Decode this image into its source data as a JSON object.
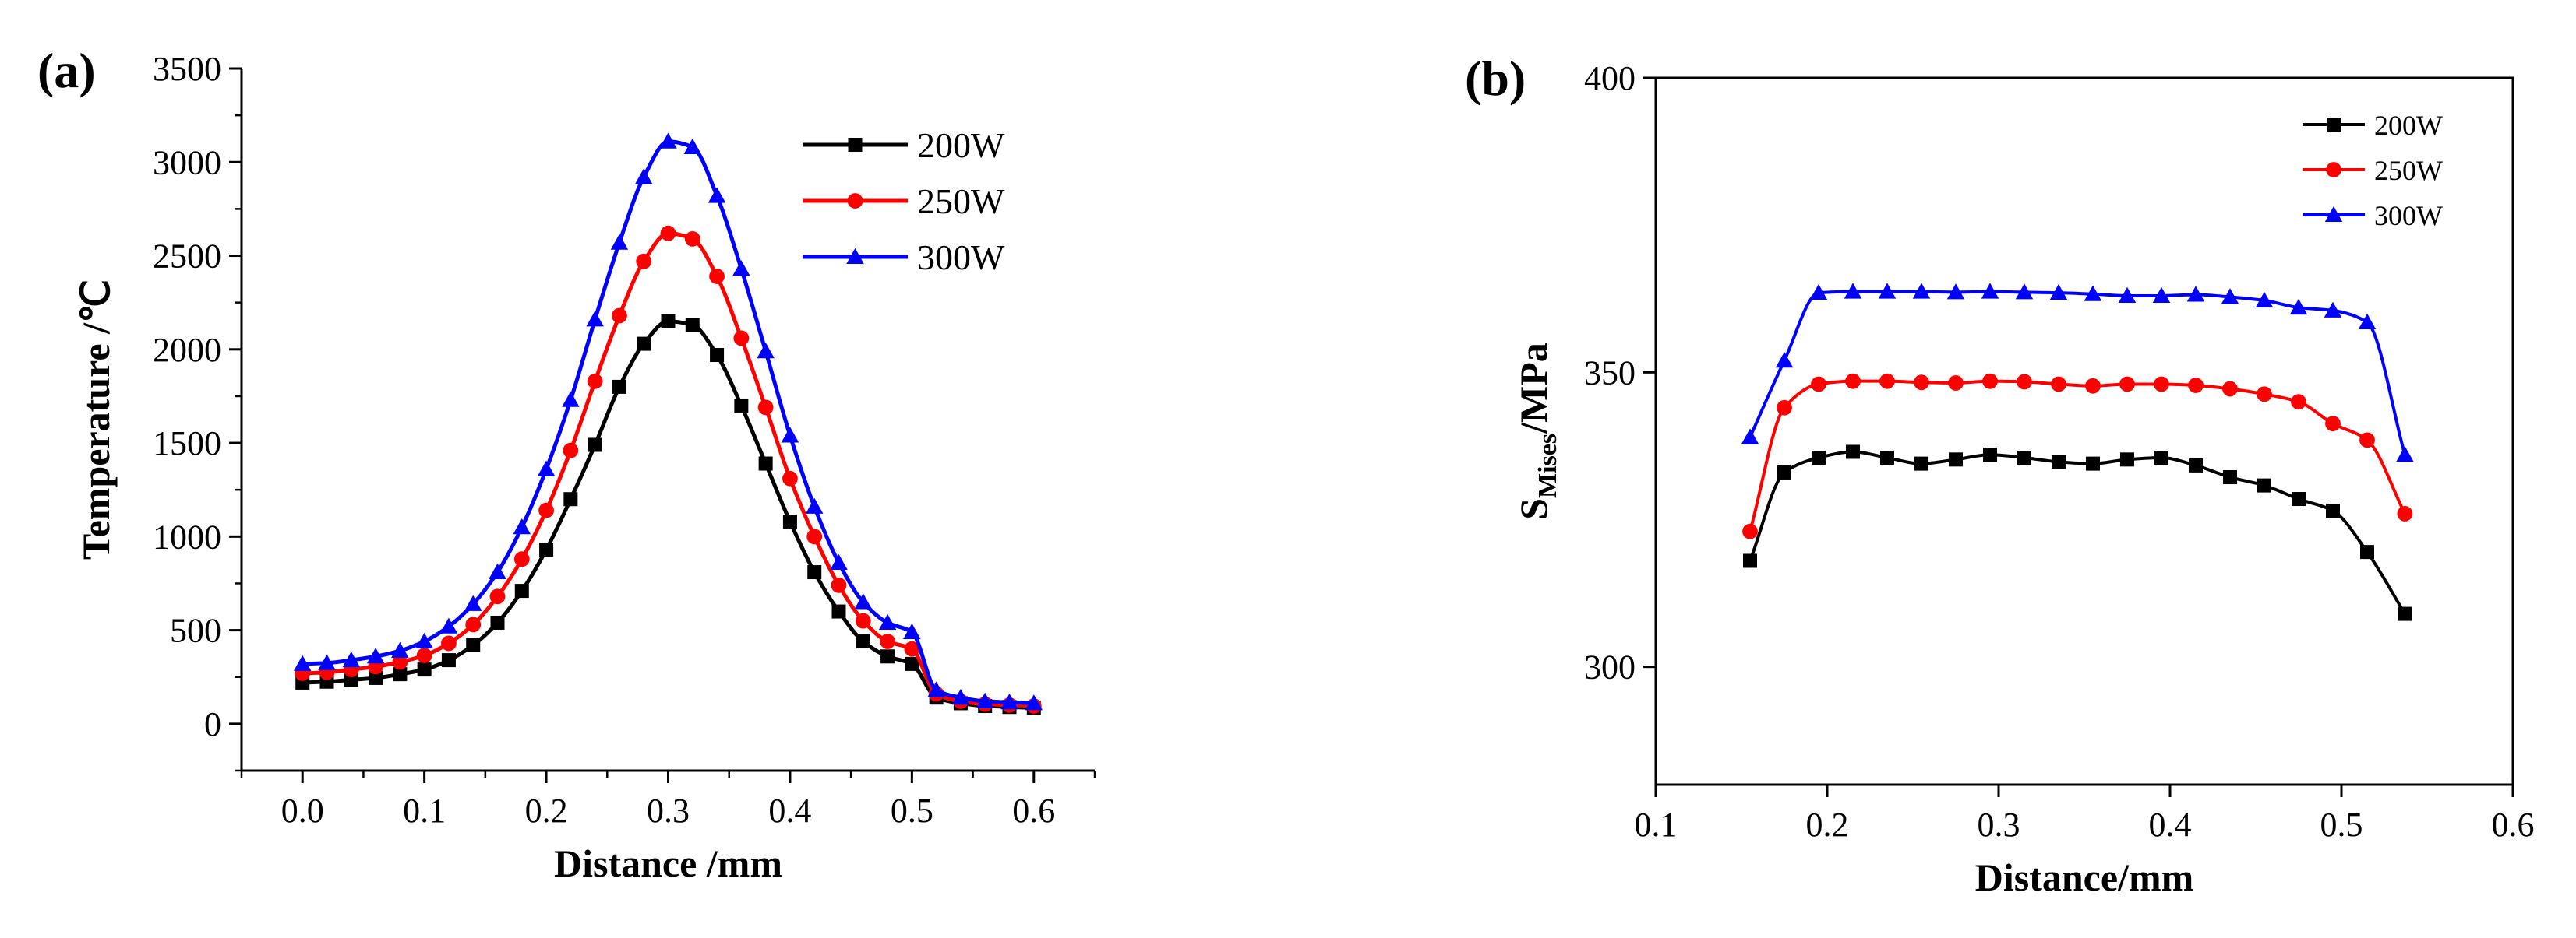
{
  "chart_data": [
    {
      "type": "line",
      "panel_label": "(a)",
      "xlabel": "Distance /mm",
      "ylabel": "Temperature /℃",
      "xlim": [
        -0.05,
        0.65
      ],
      "ylim": [
        -250,
        3500
      ],
      "xticks": [
        "0.0",
        "0.1",
        "0.2",
        "0.3",
        "0.4",
        "0.5",
        "0.6"
      ],
      "yticks": [
        "0",
        "500",
        "1000",
        "1500",
        "2000",
        "2500",
        "3000",
        "3500"
      ],
      "legend_position": "top-right",
      "x": [
        0.0,
        0.02,
        0.04,
        0.06,
        0.08,
        0.1,
        0.12,
        0.14,
        0.16,
        0.18,
        0.2,
        0.22,
        0.24,
        0.26,
        0.28,
        0.3,
        0.32,
        0.34,
        0.36,
        0.38,
        0.4,
        0.42,
        0.44,
        0.46,
        0.48,
        0.5,
        0.52,
        0.54,
        0.56,
        0.58,
        0.6
      ],
      "series": [
        {
          "name": "200W",
          "color": "#000000",
          "marker": "square",
          "values": [
            220,
            225,
            235,
            245,
            265,
            290,
            340,
            420,
            540,
            710,
            930,
            1200,
            1490,
            1800,
            2030,
            2150,
            2130,
            1970,
            1700,
            1390,
            1080,
            810,
            600,
            440,
            360,
            320,
            140,
            110,
            95,
            90,
            85
          ]
        },
        {
          "name": "250W",
          "color": "#ff0000",
          "marker": "circle",
          "values": [
            270,
            275,
            290,
            305,
            330,
            365,
            430,
            530,
            680,
            880,
            1140,
            1460,
            1830,
            2180,
            2470,
            2620,
            2590,
            2390,
            2060,
            1690,
            1310,
            1000,
            740,
            550,
            440,
            400,
            160,
            120,
            105,
            100,
            95
          ]
        },
        {
          "name": "300W",
          "color": "#0000ff",
          "marker": "triangle",
          "values": [
            320,
            325,
            340,
            360,
            390,
            440,
            520,
            640,
            810,
            1050,
            1360,
            1730,
            2160,
            2570,
            2920,
            3110,
            3080,
            2820,
            2430,
            1990,
            1540,
            1160,
            860,
            650,
            540,
            490,
            180,
            140,
            120,
            115,
            110
          ]
        }
      ]
    },
    {
      "type": "line",
      "panel_label": "(b)",
      "xlabel": "Distance/mm",
      "ylabel": "S",
      "ylabel_subscript": "Mises",
      "ylabel_suffix": "/MPa",
      "xlim": [
        0.1,
        0.6
      ],
      "ylim": [
        280,
        400
      ],
      "xticks": [
        "0.1",
        "0.2",
        "0.3",
        "0.4",
        "0.5",
        "0.6"
      ],
      "yticks": [
        "300",
        "350",
        "400"
      ],
      "legend_position": "top-right",
      "x": [
        0.155,
        0.175,
        0.195,
        0.215,
        0.235,
        0.255,
        0.275,
        0.295,
        0.315,
        0.335,
        0.355,
        0.375,
        0.395,
        0.415,
        0.435,
        0.455,
        0.475,
        0.495,
        0.515,
        0.537
      ],
      "series": [
        {
          "name": "200W",
          "color": "#000000",
          "marker": "square",
          "values": [
            318,
            333,
            335.5,
            336.5,
            335.5,
            334.5,
            335.2,
            336,
            335.5,
            334.8,
            334.5,
            335.2,
            335.5,
            334.2,
            332.2,
            330.8,
            328.5,
            326.5,
            319.5,
            309
          ]
        },
        {
          "name": "250W",
          "color": "#ff0000",
          "marker": "circle",
          "values": [
            323,
            344,
            348,
            348.5,
            348.5,
            348.3,
            348.2,
            348.5,
            348.4,
            348,
            347.7,
            348,
            348,
            347.8,
            347.2,
            346.3,
            345,
            341.3,
            338.5,
            326
          ]
        },
        {
          "name": "300W",
          "color": "#0000ff",
          "marker": "triangle",
          "values": [
            339,
            352,
            363.5,
            363.7,
            363.7,
            363.7,
            363.6,
            363.7,
            363.6,
            363.5,
            363.3,
            363,
            363,
            363.2,
            362.8,
            362.2,
            361,
            360.5,
            358.5,
            336
          ]
        }
      ]
    }
  ]
}
